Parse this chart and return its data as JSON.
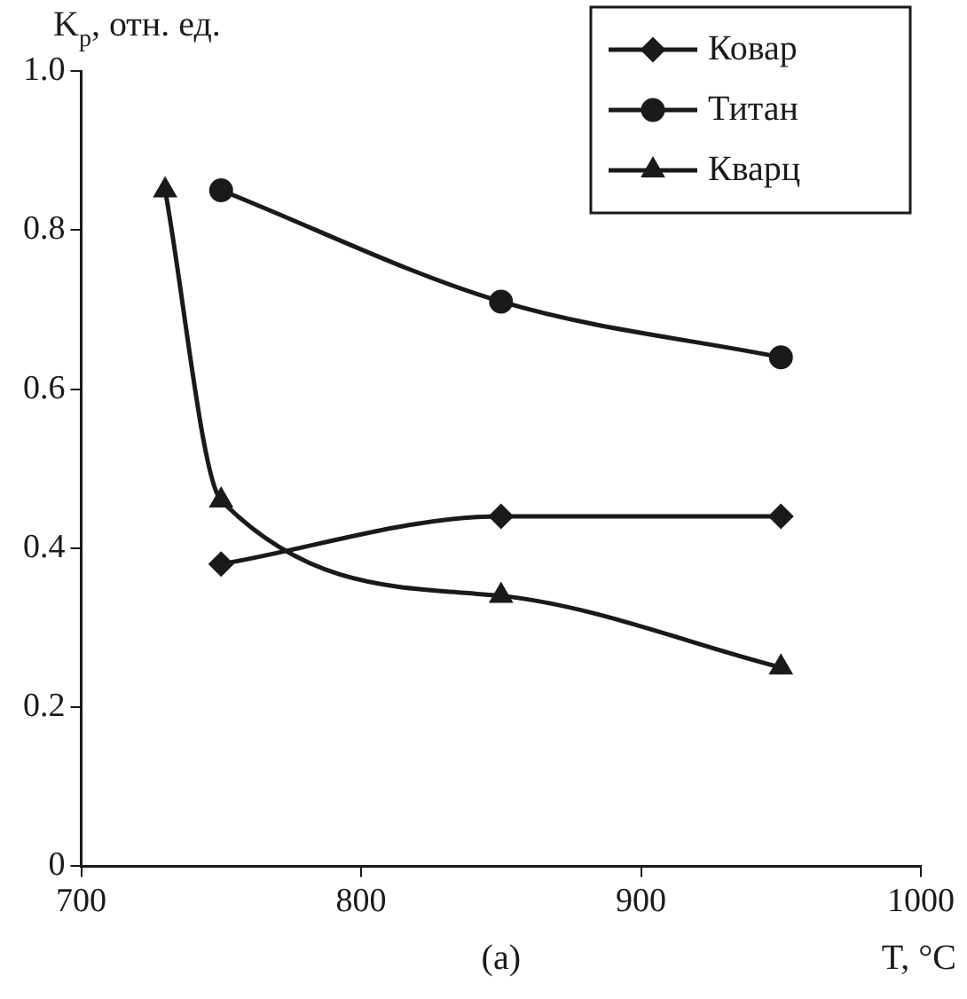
{
  "chart_data": {
    "type": "line",
    "xlabel": "T, °C",
    "ylabel": "K$_{p}$, отн. ед.",
    "annotations": [
      "(a)"
    ],
    "xlim": [
      700,
      1000
    ],
    "xticks": [
      700,
      800,
      900,
      1000
    ],
    "ylim": [
      0,
      1
    ],
    "yticks": [
      0,
      0.2,
      0.4,
      0.6,
      0.8,
      {
        "value": 1,
        "label": "1.0"
      }
    ],
    "legend": "top right",
    "grid": false,
    "series": [
      {
        "name": "Ковар",
        "color": "#1a1a1a",
        "marker": "diamond",
        "x": [
          750,
          850,
          950
        ],
        "values": [
          0.38,
          0.44,
          0.44
        ]
      },
      {
        "name": "Титан",
        "color": "#1a1a1a",
        "marker": "circle",
        "x": [
          750,
          850,
          950
        ],
        "values": [
          0.85,
          0.71,
          0.64
        ]
      },
      {
        "name": "Кварц",
        "color": "#1a1a1a",
        "marker": "triangle",
        "x": [
          730,
          750,
          850,
          950
        ],
        "values": [
          0.85,
          0.46,
          0.34,
          0.25
        ]
      }
    ]
  }
}
